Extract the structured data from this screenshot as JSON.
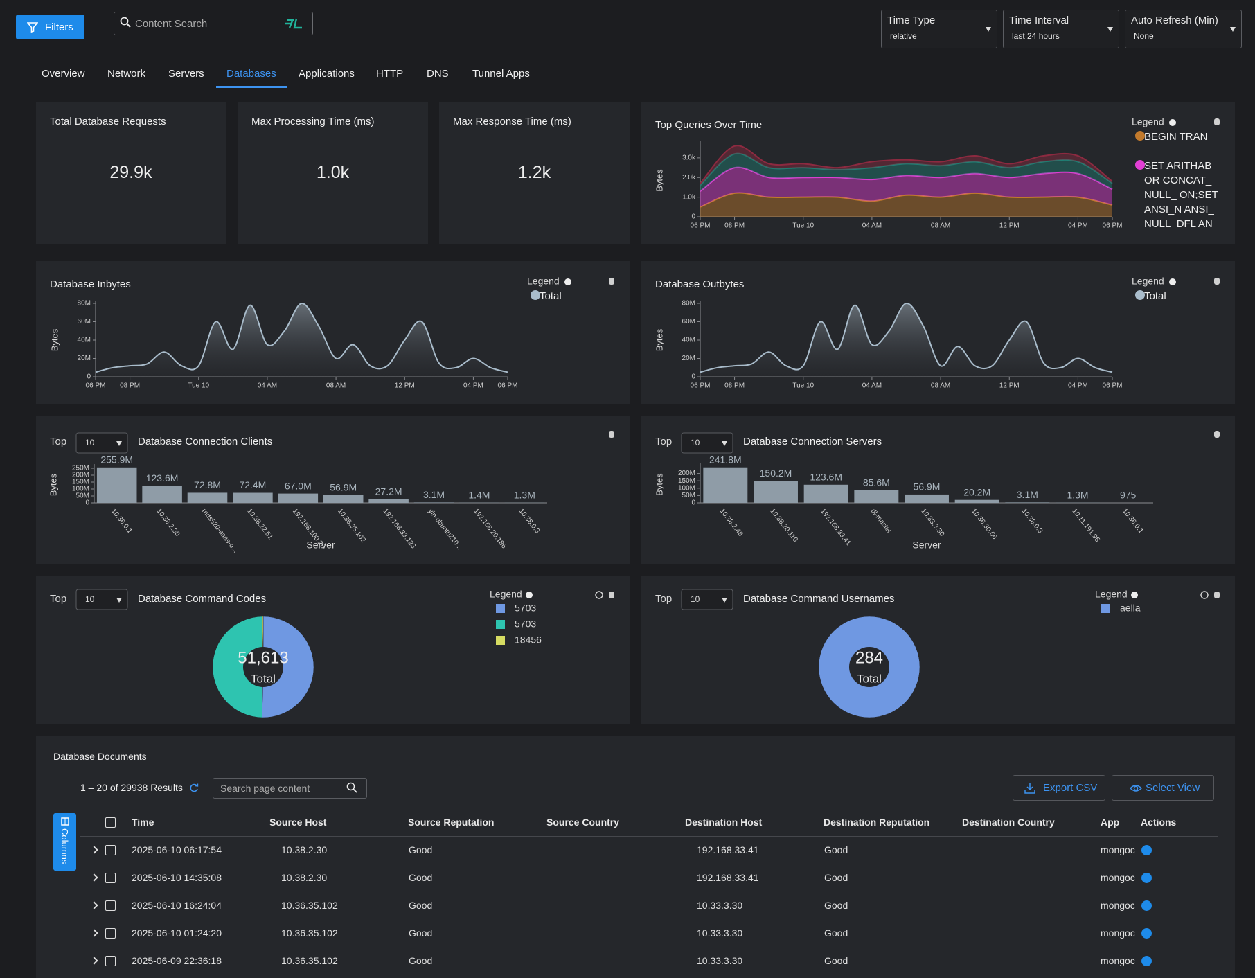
{
  "header": {
    "filters": "Filters",
    "search_placeholder": "Content Search",
    "time_type": {
      "label": "Time Type",
      "value": "relative"
    },
    "time_interval": {
      "label": "Time Interval",
      "value": "last 24 hours"
    },
    "auto_refresh": {
      "label": "Auto Refresh (Min)",
      "value": "None"
    }
  },
  "tabs": [
    "Overview",
    "Network",
    "Servers",
    "Databases",
    "Applications",
    "HTTP",
    "DNS",
    "Tunnel Apps"
  ],
  "active_tab": 3,
  "kpis": [
    {
      "title": "Total Database Requests",
      "value": "29.9k"
    },
    {
      "title": "Max Processing Time (ms)",
      "value": "1.0k"
    },
    {
      "title": "Max Response Time (ms)",
      "value": "1.2k"
    }
  ],
  "chart_data": [
    {
      "type": "area",
      "stacked": true,
      "title": "Top Queries Over Time",
      "ylabel": "Bytes",
      "legend_title": "Legend",
      "x": [
        0,
        2,
        4,
        6,
        8,
        10,
        12,
        14,
        16,
        18,
        20,
        22,
        24
      ],
      "xlim": [
        0,
        24
      ],
      "xticks": [
        {
          "value": 0,
          "label": "06 PM"
        },
        {
          "value": 2,
          "label": "08 PM"
        },
        {
          "value": 6,
          "label": "Tue 10"
        },
        {
          "value": 10,
          "label": "04 AM"
        },
        {
          "value": 14,
          "label": "08 AM"
        },
        {
          "value": 18,
          "label": "12 PM"
        },
        {
          "value": 22,
          "label": "04 PM"
        },
        {
          "value": 24,
          "label": "06 PM"
        }
      ],
      "ylim": [
        0,
        3700
      ],
      "yticks": [
        0,
        {
          "value": 1000,
          "label": "1.0k"
        },
        {
          "value": 2000,
          "label": "2.0k"
        },
        {
          "value": 3000,
          "label": "3.0k"
        }
      ],
      "series": [
        {
          "name": "BEGIN TRAN",
          "color": "#c27a2c",
          "values": [
            500,
            1200,
            1000,
            1000,
            1000,
            800,
            1100,
            1000,
            1200,
            1000,
            1000,
            1000,
            600
          ]
        },
        {
          "name": "SET ARITHABOR CONCAT_NULL_ ON;SET ANSI_N ANSI_NULL_DFL ANSI_PADDING",
          "color": "#e23fd4",
          "values": [
            800,
            1300,
            1000,
            1000,
            1000,
            1100,
            1000,
            1000,
            1000,
            1000,
            1200,
            1200,
            800
          ]
        },
        {
          "color": "#1f7f74",
          "values": [
            300,
            700,
            500,
            500,
            400,
            600,
            600,
            600,
            600,
            500,
            600,
            600,
            300
          ]
        },
        {
          "color": "#8c2a40",
          "values": [
            100,
            400,
            200,
            200,
            100,
            300,
            200,
            200,
            300,
            200,
            300,
            300,
            100
          ]
        }
      ]
    },
    {
      "type": "area",
      "title": "Database Inbytes",
      "ylabel": "Bytes",
      "legend_title": "Legend",
      "x": [
        0,
        1,
        2,
        3,
        4,
        5,
        6,
        7,
        8,
        9,
        10,
        11,
        12,
        13,
        14,
        15,
        16,
        17,
        18,
        19,
        20,
        21,
        22,
        23,
        24
      ],
      "xlim": [
        0,
        24
      ],
      "xticks": [
        {
          "value": 0,
          "label": "06 PM"
        },
        {
          "value": 2,
          "label": "08 PM"
        },
        {
          "value": 6,
          "label": "Tue 10"
        },
        {
          "value": 10,
          "label": "04 AM"
        },
        {
          "value": 14,
          "label": "08 AM"
        },
        {
          "value": 18,
          "label": "12 PM"
        },
        {
          "value": 22,
          "label": "04 PM"
        },
        {
          "value": 24,
          "label": "06 PM"
        }
      ],
      "ylim": [
        0,
        80000000
      ],
      "yticks": [
        0,
        {
          "value": 20000000,
          "label": "20M"
        },
        {
          "value": 40000000,
          "label": "40M"
        },
        {
          "value": 60000000,
          "label": "60M"
        },
        {
          "value": 80000000,
          "label": "80M"
        }
      ],
      "series": [
        {
          "name": "Total",
          "color": "#a9bccb",
          "values": [
            5000000,
            10000000,
            12000000,
            14000000,
            27000000,
            12000000,
            12000000,
            60000000,
            30000000,
            78000000,
            35000000,
            50000000,
            80000000,
            55000000,
            20000000,
            35000000,
            12000000,
            12000000,
            40000000,
            60000000,
            15000000,
            10000000,
            20000000,
            10000000,
            5000000
          ]
        }
      ]
    },
    {
      "type": "area",
      "title": "Database Outbytes",
      "ylabel": "Bytes",
      "legend_title": "Legend",
      "x": [
        0,
        1,
        2,
        3,
        4,
        5,
        6,
        7,
        8,
        9,
        10,
        11,
        12,
        13,
        14,
        15,
        16,
        17,
        18,
        19,
        20,
        21,
        22,
        23,
        24
      ],
      "xlim": [
        0,
        24
      ],
      "xticks": [
        {
          "value": 0,
          "label": "06 PM"
        },
        {
          "value": 2,
          "label": "08 PM"
        },
        {
          "value": 6,
          "label": "Tue 10"
        },
        {
          "value": 10,
          "label": "04 AM"
        },
        {
          "value": 14,
          "label": "08 AM"
        },
        {
          "value": 18,
          "label": "12 PM"
        },
        {
          "value": 22,
          "label": "04 PM"
        },
        {
          "value": 24,
          "label": "06 PM"
        }
      ],
      "ylim": [
        0,
        80000000
      ],
      "yticks": [
        0,
        {
          "value": 20000000,
          "label": "20M"
        },
        {
          "value": 40000000,
          "label": "40M"
        },
        {
          "value": 60000000,
          "label": "60M"
        },
        {
          "value": 80000000,
          "label": "80M"
        }
      ],
      "series": [
        {
          "name": "Total",
          "color": "#a9bccb",
          "values": [
            5000000,
            10000000,
            12000000,
            14000000,
            27000000,
            12000000,
            12000000,
            60000000,
            30000000,
            78000000,
            35000000,
            50000000,
            80000000,
            55000000,
            12000000,
            33000000,
            12000000,
            12000000,
            40000000,
            60000000,
            15000000,
            10000000,
            20000000,
            10000000,
            5000000
          ]
        }
      ]
    },
    {
      "type": "bar",
      "top_label": "Top",
      "top_n": "10",
      "title": "Database Connection Clients",
      "xlabel": "Server",
      "ylabel": "Bytes",
      "color": "#8f9ca7",
      "categories": [
        "10.36.0.1",
        "10.38.2.30",
        "mds520-saas-o...",
        "10.36.22.51",
        "192.168.100.28",
        "10.36.35.102",
        "192.168.33.123",
        "yin-ubuntu210...",
        "192.168.20.186",
        "10.38.0.3"
      ],
      "values": [
        255900000,
        123600000,
        72800000,
        72400000,
        67000000,
        56900000,
        27200000,
        3100000,
        1400000,
        1300000
      ],
      "value_labels": [
        "255.9M",
        "123.6M",
        "72.8M",
        "72.4M",
        "67.0M",
        "56.9M",
        "27.2M",
        "3.1M",
        "1.4M",
        "1.3M"
      ],
      "ylim": [
        0,
        260000000
      ],
      "yticks": [
        0,
        {
          "value": 50000000,
          "label": "50M"
        },
        {
          "value": 100000000,
          "label": "100M"
        },
        {
          "value": 150000000,
          "label": "150M"
        },
        {
          "value": 200000000,
          "label": "200M"
        },
        {
          "value": 250000000,
          "label": "250M"
        }
      ]
    },
    {
      "type": "bar",
      "top_label": "Top",
      "top_n": "10",
      "title": "Database Connection Servers",
      "xlabel": "Server",
      "ylabel": "Bytes",
      "color": "#8f9ca7",
      "categories": [
        "10.38.2.46",
        "10.36.20.110",
        "192.168.33.41",
        "dl-master",
        "10.33.3.30",
        "10.36.30.66",
        "10.38.0.3",
        "10.11.191.95",
        "10.36.0.1"
      ],
      "values": [
        241800000,
        150200000,
        123600000,
        85600000,
        56900000,
        20200000,
        3100000,
        1300000,
        975
      ],
      "value_labels": [
        "241.8M",
        "150.2M",
        "123.6M",
        "85.6M",
        "56.9M",
        "20.2M",
        "3.1M",
        "1.3M",
        "975"
      ],
      "ylim": [
        0,
        250000000
      ],
      "yticks": [
        0,
        {
          "value": 50000000,
          "label": "50M"
        },
        {
          "value": 100000000,
          "label": "100M"
        },
        {
          "value": 150000000,
          "label": "150M"
        },
        {
          "value": 200000000,
          "label": "200M"
        }
      ]
    },
    {
      "type": "donut",
      "top_label": "Top",
      "top_n": "10",
      "title": "Database Command Codes",
      "legend_title": "Legend",
      "categories": [
        "5703",
        "5703",
        "18456"
      ],
      "values": [
        26000,
        25413,
        200
      ],
      "colors": [
        "#6f98e2",
        "#2ec4b0",
        "#d6dc62"
      ],
      "total": {
        "value": 51613,
        "label": "51,613"
      },
      "total_label": "Total"
    },
    {
      "type": "donut",
      "top_label": "Top",
      "top_n": "10",
      "title": "Database Command Usernames",
      "legend_title": "Legend",
      "categories": [
        "aella"
      ],
      "values": [
        284
      ],
      "colors": [
        "#6f98e2"
      ],
      "total": 284,
      "total_label": "Total"
    }
  ],
  "table": {
    "title": "Database Documents",
    "results": "1 – 20 of 29938 Results",
    "search_placeholder": "Search page content",
    "export": "Export CSV",
    "select_view": "Select View",
    "columns_button": "Columns",
    "columns": [
      "Time",
      "Source Host",
      "Source Reputation",
      "Source Country",
      "Destination Host",
      "Destination Reputation",
      "Destination Country",
      "App",
      "Actions"
    ],
    "rows": [
      [
        "2025-06-10 06:17:54",
        "10.38.2.30",
        "Good",
        "192.168.33.41",
        "Good",
        "mongoc"
      ],
      [
        "2025-06-10 14:35:08",
        "10.38.2.30",
        "Good",
        "192.168.33.41",
        "Good",
        "mongoc"
      ],
      [
        "2025-06-10 16:24:04",
        "10.36.35.102",
        "Good",
        "10.33.3.30",
        "Good",
        "mongoc"
      ],
      [
        "2025-06-10 01:24:20",
        "10.36.35.102",
        "Good",
        "10.33.3.30",
        "Good",
        "mongoc"
      ],
      [
        "2025-06-09 22:36:18",
        "10.36.35.102",
        "Good",
        "10.33.3.30",
        "Good",
        "mongoc"
      ]
    ]
  }
}
